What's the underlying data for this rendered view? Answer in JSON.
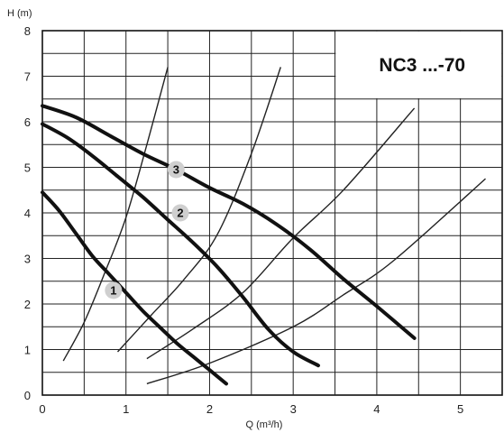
{
  "chart_data": {
    "type": "line",
    "title": "NC3 ...-70",
    "xlabel": "Q (m³/h)",
    "ylabel": "H (m)",
    "xlim": [
      0,
      5.5
    ],
    "ylim": [
      0,
      8
    ],
    "x_ticks": [
      "0",
      "1",
      "2",
      "3",
      "4",
      "5"
    ],
    "y_ticks": [
      "0",
      "1",
      "2",
      "3",
      "4",
      "5",
      "6",
      "7",
      "8"
    ],
    "grid": true,
    "pump_curves": [
      {
        "label": "1",
        "label_at": [
          0.85,
          2.3
        ],
        "x": [
          0.0,
          0.2,
          0.4,
          0.6,
          0.8,
          1.0,
          1.2,
          1.4,
          1.6,
          1.8,
          2.0,
          2.2
        ],
        "y": [
          4.45,
          4.05,
          3.55,
          3.05,
          2.65,
          2.25,
          1.85,
          1.5,
          1.15,
          0.85,
          0.55,
          0.25
        ]
      },
      {
        "label": "2",
        "label_at": [
          1.65,
          4.0
        ],
        "x": [
          0.0,
          0.3,
          0.6,
          0.9,
          1.2,
          1.5,
          1.8,
          2.1,
          2.4,
          2.7,
          3.0,
          3.3
        ],
        "y": [
          5.95,
          5.65,
          5.25,
          4.8,
          4.35,
          3.85,
          3.35,
          2.8,
          2.15,
          1.45,
          0.95,
          0.65
        ]
      },
      {
        "label": "3",
        "label_at": [
          1.6,
          4.95
        ],
        "x": [
          0.0,
          0.4,
          0.8,
          1.2,
          1.6,
          2.0,
          2.4,
          2.8,
          3.2,
          3.6,
          4.0,
          4.45
        ],
        "y": [
          6.35,
          6.1,
          5.7,
          5.3,
          4.95,
          4.55,
          4.2,
          3.75,
          3.2,
          2.55,
          1.95,
          1.25
        ]
      }
    ],
    "system_curves": [
      {
        "x": [
          0.25,
          0.5,
          0.75,
          1.0,
          1.25,
          1.5
        ],
        "y": [
          0.75,
          1.6,
          2.7,
          3.9,
          5.5,
          7.2
        ]
      },
      {
        "x": [
          0.9,
          1.3,
          1.7,
          2.1,
          2.5,
          2.85
        ],
        "y": [
          0.95,
          1.75,
          2.55,
          3.55,
          5.3,
          7.2
        ]
      },
      {
        "x": [
          1.25,
          1.8,
          2.4,
          3.0,
          3.6,
          4.45
        ],
        "y": [
          0.8,
          1.45,
          2.25,
          3.45,
          4.5,
          6.3
        ]
      },
      {
        "x": [
          1.25,
          2.0,
          3.0,
          3.6,
          4.2,
          5.3
        ],
        "y": [
          0.25,
          0.7,
          1.5,
          2.2,
          2.95,
          4.75
        ]
      }
    ]
  }
}
